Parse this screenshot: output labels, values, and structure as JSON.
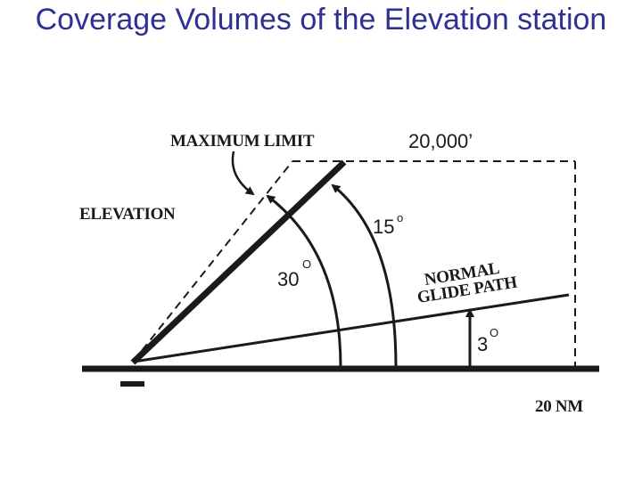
{
  "slide": {
    "title": "Coverage Volumes of the Elevation station"
  },
  "diagram": {
    "labels": {
      "maximum_limit": "MAXIMUM LIMIT",
      "altitude": "20,000’",
      "elevation": "ELEVATION",
      "normal": "NORMAL",
      "glide_path": "GLIDE PATH",
      "range": "20 NM"
    },
    "angles": {
      "outer": {
        "value": "30",
        "degree": "O"
      },
      "inner": {
        "value": "15",
        "degree": "o"
      },
      "glide": {
        "value": "3",
        "degree": "O"
      }
    }
  }
}
